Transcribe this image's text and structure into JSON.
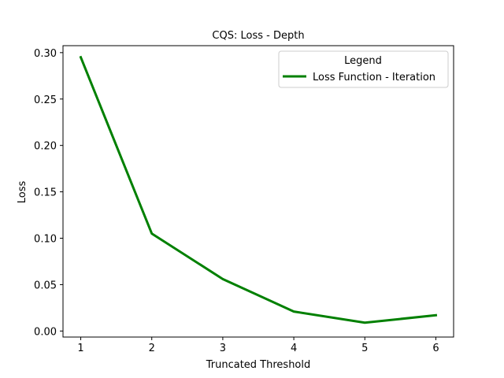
{
  "chart_data": {
    "type": "line",
    "title": "CQS: Loss - Depth",
    "xlabel": "Truncated Threshold",
    "ylabel": "Loss",
    "x": [
      1,
      2,
      3,
      4,
      5,
      6
    ],
    "series": [
      {
        "name": "Loss Function - Iteration",
        "color": "#008000",
        "values": [
          0.295,
          0.105,
          0.056,
          0.021,
          0.009,
          0.017
        ]
      }
    ],
    "xlim": [
      0.75,
      6.25
    ],
    "ylim": [
      -0.0065,
      0.3075
    ],
    "xticks": [
      1,
      2,
      3,
      4,
      5,
      6
    ],
    "yticks": [
      0.0,
      0.05,
      0.1,
      0.15,
      0.2,
      0.25,
      0.3
    ],
    "ytick_labels": [
      "0.00",
      "0.05",
      "0.10",
      "0.15",
      "0.20",
      "0.25",
      "0.30"
    ],
    "grid": false,
    "legend": {
      "title": "Legend",
      "placement": "top-right"
    }
  }
}
